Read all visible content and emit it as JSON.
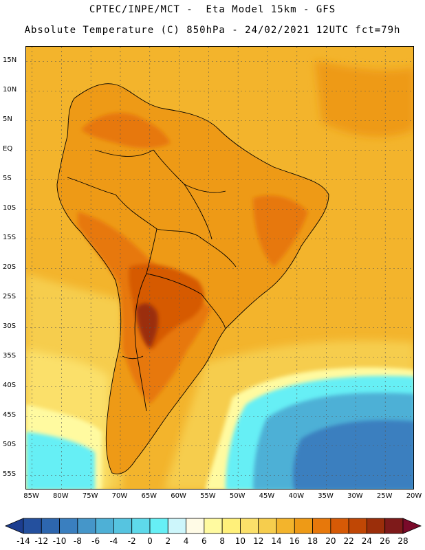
{
  "header": {
    "line1": "CPTEC/INPE/MCT -  Eta Model 15km - GFS",
    "line2": "Absolute Temperature (C) 850hPa - 24/02/2021 12UTC fct=79h"
  },
  "axes": {
    "lat_labels": [
      "15N",
      "10N",
      "5N",
      "EQ",
      "5S",
      "10S",
      "15S",
      "20S",
      "25S",
      "30S",
      "35S",
      "40S",
      "45S",
      "50S",
      "55S"
    ],
    "lat_values": [
      15,
      10,
      5,
      0,
      -5,
      -10,
      -15,
      -20,
      -25,
      -30,
      -35,
      -40,
      -45,
      -50,
      -55
    ],
    "lon_labels": [
      "85W",
      "80W",
      "75W",
      "70W",
      "65W",
      "60W",
      "55W",
      "50W",
      "45W",
      "40W",
      "35W",
      "30W",
      "25W",
      "20W"
    ],
    "lon_values": [
      -85,
      -80,
      -75,
      -70,
      -65,
      -60,
      -55,
      -50,
      -45,
      -40,
      -35,
      -30,
      -25,
      -20
    ],
    "lat_range": [
      -57.5,
      17.5
    ],
    "lon_range": [
      -86,
      -20
    ]
  },
  "colorbar": {
    "labels": [
      "-14",
      "-12",
      "-10",
      "-8",
      "-6",
      "-4",
      "-2",
      "0",
      "2",
      "4",
      "6",
      "8",
      "10",
      "12",
      "14",
      "16",
      "18",
      "20",
      "22",
      "24",
      "26",
      "28"
    ],
    "colors": [
      "#1c3d8f",
      "#24509e",
      "#2d66ae",
      "#3a7fbf",
      "#4596c9",
      "#4eb0d6",
      "#56c4e0",
      "#5ed9ea",
      "#66eff5",
      "#cdf6fb",
      "#fffbe6",
      "#fffaa0",
      "#fff07a",
      "#fbe06a",
      "#f6cd4d",
      "#f3b42c",
      "#ee9a16",
      "#e7780b",
      "#d65a06",
      "#c04705",
      "#9b2e0a",
      "#7e1a1a",
      "#7a0a2a"
    ]
  },
  "map_colors": {
    "ocean_warm": "#f3b42c",
    "ocean_mild": "#f6cd4d",
    "ocean_cool": "#fbe06a",
    "pale": "#fffaa0",
    "cream": "#fffbe6",
    "cold_light": "#66eff5",
    "cold_mid": "#4eb0d6",
    "cold_deep": "#3a7fbf",
    "land_warm": "#ee9a16",
    "land_hot": "#e7780b",
    "land_hotter": "#d65a06",
    "land_hottest": "#9b2e0a"
  }
}
